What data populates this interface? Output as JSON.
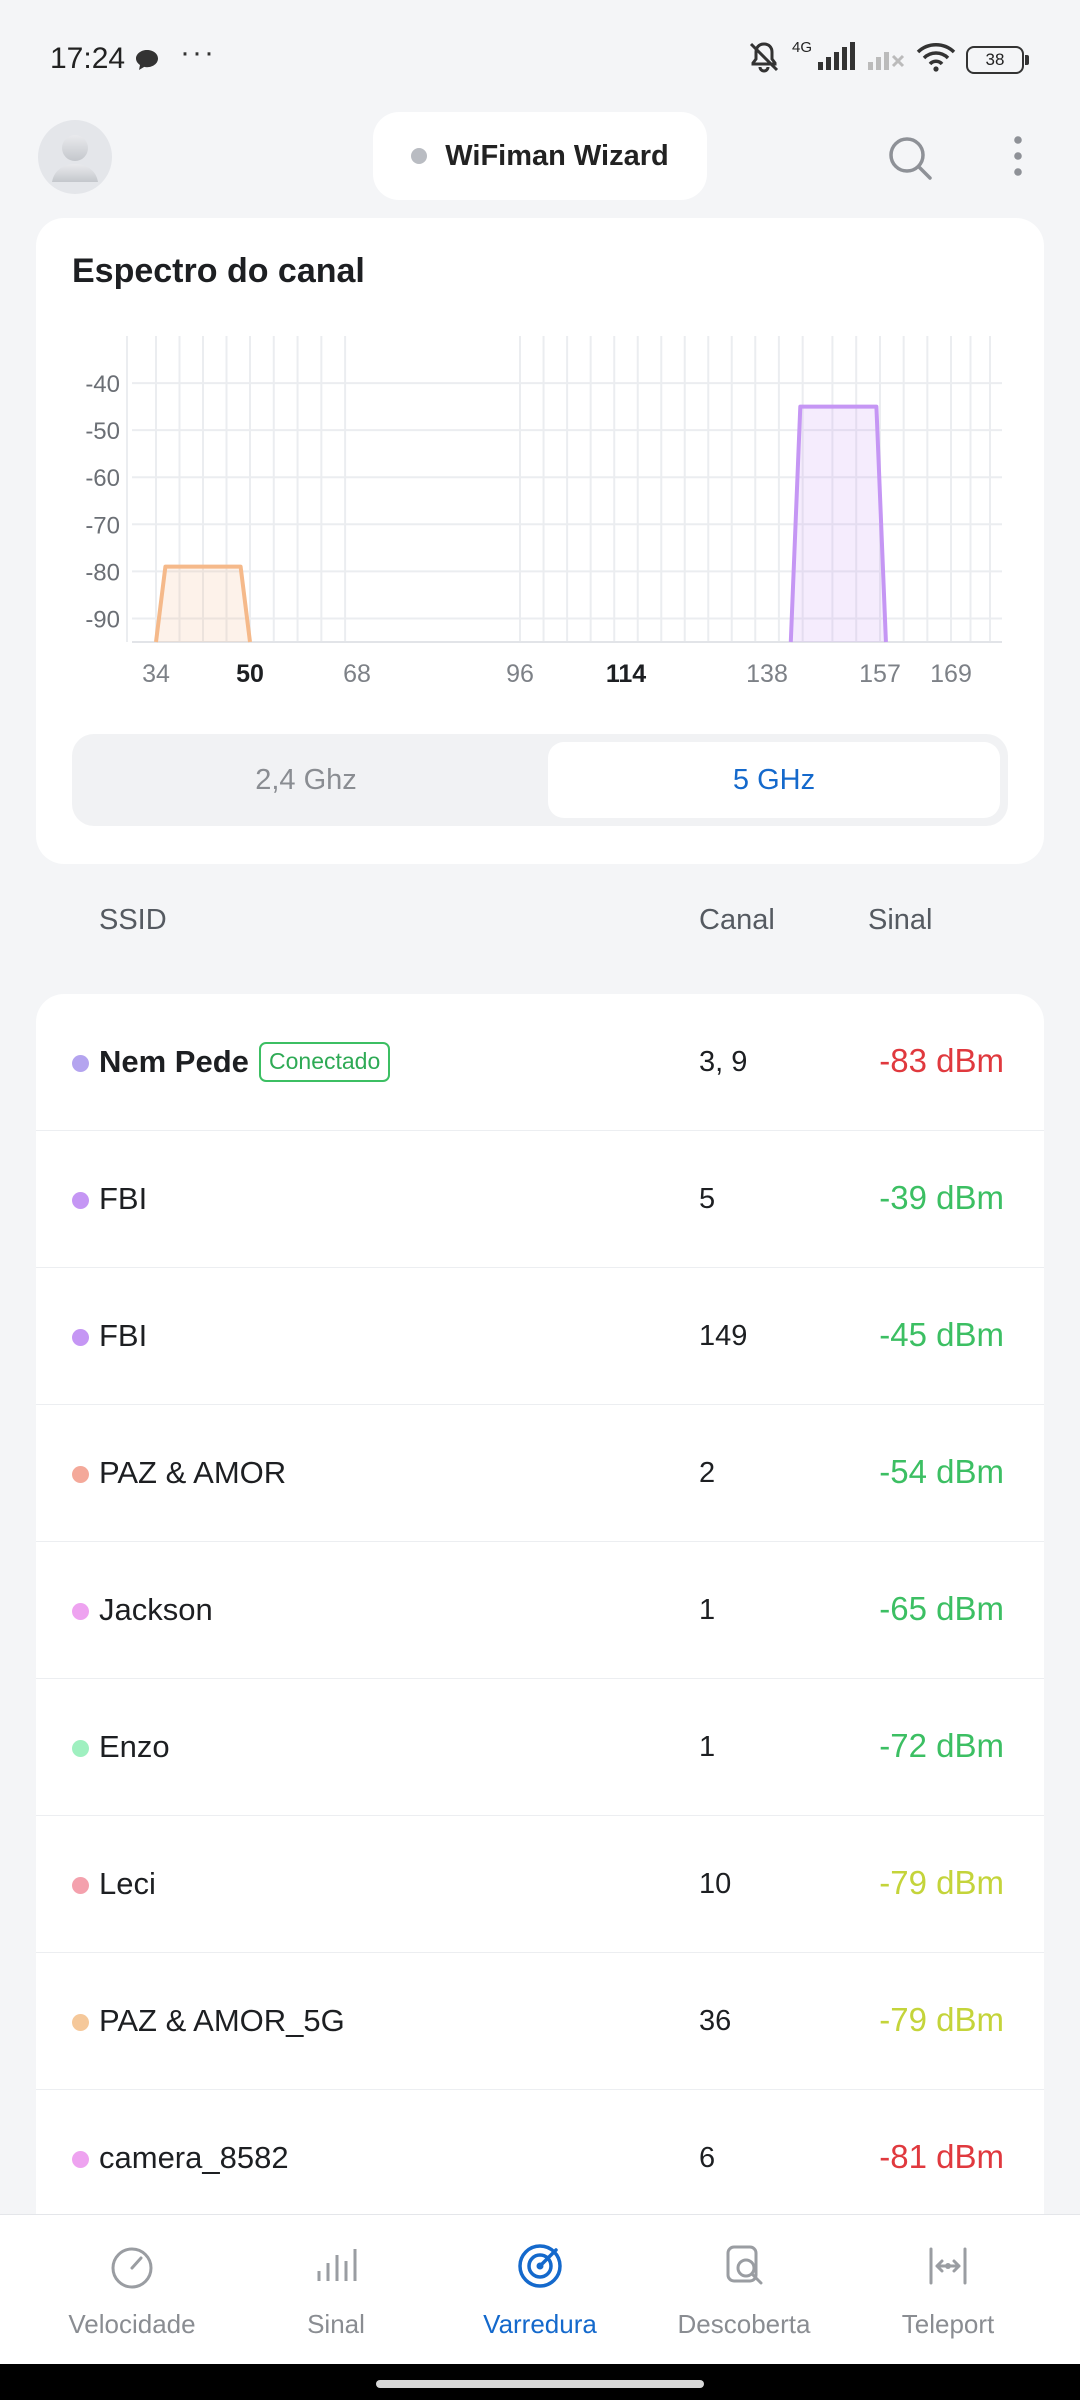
{
  "status_bar": {
    "time": "17:24",
    "dots": "···",
    "network_label": "4G",
    "battery": "38"
  },
  "header": {
    "title": "WiFiman Wizard"
  },
  "spectrum": {
    "title": "Espectro do canal",
    "band_options": [
      "2,4 Ghz",
      "5 GHz"
    ],
    "selected_band": "5 GHz"
  },
  "chart_data": {
    "type": "area",
    "title": "Espectro do canal",
    "y_ticks": [
      "-40",
      "-50",
      "-60",
      "-70",
      "-80",
      "-90"
    ],
    "ylim": [
      -95,
      -30
    ],
    "x_ticks": [
      {
        "label": "34",
        "channel": 34,
        "bold": false
      },
      {
        "label": "50",
        "channel": 50,
        "bold": true
      },
      {
        "label": "68",
        "channel": 68,
        "bold": false
      },
      {
        "label": "96",
        "channel": 96,
        "bold": false
      },
      {
        "label": "114",
        "channel": 114,
        "bold": true
      },
      {
        "label": "138",
        "channel": 138,
        "bold": false
      },
      {
        "label": "157",
        "channel": 157,
        "bold": false
      },
      {
        "label": "169",
        "channel": 169,
        "bold": false
      }
    ],
    "grid": true,
    "series": [
      {
        "channel_center": 36,
        "from_channel": 34,
        "to_channel": 50,
        "signal": -79,
        "color": "#f5b98a"
      },
      {
        "channel_center": 149,
        "from_channel": 142,
        "to_channel": 158,
        "signal": -45,
        "color": "#c596f4"
      }
    ]
  },
  "list_header": {
    "ssid": "SSID",
    "canal": "Canal",
    "sinal": "Sinal"
  },
  "networks": [
    {
      "ssid": "Nem Pede",
      "badge": "Conectado",
      "canal": "3, 9",
      "sinal": "-83 dBm",
      "dot_color": "#b4a4ef",
      "signal_color": "#e0393e"
    },
    {
      "ssid": "FBI",
      "badge": "",
      "canal": "5",
      "sinal": "-39 dBm",
      "dot_color": "#c596f4",
      "signal_color": "#3cbf63"
    },
    {
      "ssid": "FBI",
      "badge": "",
      "canal": "149",
      "sinal": "-45 dBm",
      "dot_color": "#c596f4",
      "signal_color": "#3cbf63"
    },
    {
      "ssid": "PAZ & AMOR",
      "badge": "",
      "canal": "2",
      "sinal": "-54 dBm",
      "dot_color": "#f4a99a",
      "signal_color": "#3cbf63"
    },
    {
      "ssid": "Jackson",
      "badge": "",
      "canal": "1",
      "sinal": "-65 dBm",
      "dot_color": "#eea3f0",
      "signal_color": "#3cbf63"
    },
    {
      "ssid": "Enzo",
      "badge": "",
      "canal": "1",
      "sinal": "-72 dBm",
      "dot_color": "#9ff0c0",
      "signal_color": "#3cbf63"
    },
    {
      "ssid": "Leci",
      "badge": "",
      "canal": "10",
      "sinal": "-79 dBm",
      "dot_color": "#f4a1ad",
      "signal_color": "#c4d43a"
    },
    {
      "ssid": "PAZ & AMOR_5G",
      "badge": "",
      "canal": "36",
      "sinal": "-79 dBm",
      "dot_color": "#f5c89a",
      "signal_color": "#c4d43a"
    },
    {
      "ssid": "camera_8582",
      "badge": "",
      "canal": "6",
      "sinal": "-81 dBm",
      "dot_color": "#eea3f0",
      "signal_color": "#e0393e"
    }
  ],
  "bottom_nav": [
    {
      "label": "Velocidade",
      "icon": "speedometer-icon",
      "active": false
    },
    {
      "label": "Sinal",
      "icon": "signal-bars-icon",
      "active": false
    },
    {
      "label": "Varredura",
      "icon": "radar-scan-icon",
      "active": true
    },
    {
      "label": "Descoberta",
      "icon": "device-search-icon",
      "active": false
    },
    {
      "label": "Teleport",
      "icon": "teleport-icon",
      "active": false
    }
  ]
}
